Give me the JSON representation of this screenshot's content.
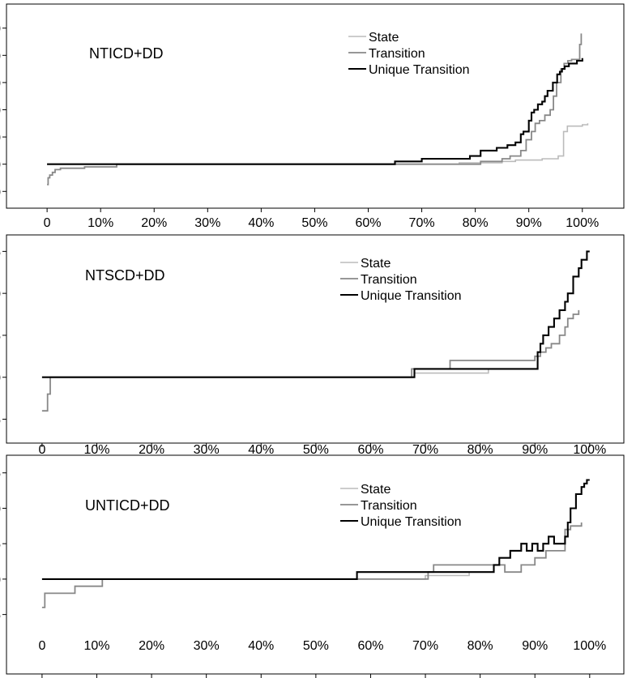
{
  "chart_data": [
    {
      "type": "line",
      "title": "NTICD+DD",
      "ylim": [
        -12,
        52
      ],
      "yticks": [
        -10,
        0,
        10,
        20,
        30,
        40,
        50
      ],
      "xticks": [
        "0",
        "10%",
        "20%",
        "30%",
        "40%",
        "50%",
        "60%",
        "70%",
        "80%",
        "90%",
        "100%"
      ],
      "xlim": [
        -0.035,
        1.07
      ],
      "legend": "top-right",
      "series": [
        {
          "name": "State",
          "color": "#bbbbbb",
          "width": 1.6,
          "step_x": [
            0,
            0.77,
            0.85,
            0.875,
            0.925,
            0.955,
            0.965,
            0.972,
            1.0,
            1.01
          ],
          "step_y": [
            0,
            0.5,
            1,
            1.5,
            2,
            3,
            12,
            14,
            14.5,
            15
          ]
        },
        {
          "name": "Transition",
          "color": "#888888",
          "width": 1.8,
          "step_x": [
            0,
            0.002,
            0.005,
            0.01,
            0.015,
            0.025,
            0.07,
            0.13,
            0.81,
            0.85,
            0.865,
            0.885,
            0.895,
            0.905,
            0.912,
            0.92,
            0.93,
            0.94,
            0.946,
            0.952,
            0.96,
            0.966,
            0.973,
            0.98,
            0.995,
            0.998
          ],
          "step_y": [
            -7.5,
            -5,
            -4,
            -3,
            -2,
            -1.5,
            -1,
            0,
            1,
            2,
            3,
            5,
            9,
            12,
            15,
            16,
            18,
            20,
            25,
            30,
            35,
            37,
            38,
            38.5,
            44,
            48
          ]
        },
        {
          "name": "Unique Transition",
          "color": "#000000",
          "width": 2.1,
          "step_x": [
            0,
            0.65,
            0.7,
            0.79,
            0.81,
            0.84,
            0.86,
            0.875,
            0.885,
            0.89,
            0.9,
            0.905,
            0.91,
            0.917,
            0.925,
            0.93,
            0.935,
            0.945,
            0.953,
            0.958,
            0.962,
            0.967,
            0.975,
            0.99,
            1.0
          ],
          "step_y": [
            0,
            1,
            2,
            3,
            5,
            6,
            7,
            8,
            11,
            12,
            16,
            19,
            20,
            22,
            23,
            25,
            27,
            30,
            33,
            34,
            35,
            36,
            37,
            38,
            39
          ]
        }
      ]
    },
    {
      "type": "line",
      "title": "NTSCD+DD",
      "ylim": [
        -6.3,
        16
      ],
      "yticks": [
        -5,
        0,
        5,
        10,
        15
      ],
      "xticks": [
        "0",
        "10%",
        "20%",
        "30%",
        "40%",
        "50%",
        "60%",
        "70%",
        "80%",
        "90%",
        "100%"
      ],
      "xlim": [
        -0.025,
        1.055
      ],
      "legend": "top-right",
      "series": [
        {
          "name": "State",
          "color": "#bbbbbb",
          "width": 1.6,
          "step_x": [
            0,
            0.68,
            0.815
          ],
          "step_y": [
            0,
            0.5,
            1
          ]
        },
        {
          "name": "Transition",
          "color": "#888888",
          "width": 1.8,
          "step_x": [
            0,
            0.01,
            0.015,
            0.675,
            0.745,
            0.9,
            0.91,
            0.92,
            0.93,
            0.945,
            0.955,
            0.96,
            0.97,
            0.98
          ],
          "step_y": [
            -4,
            -2,
            0,
            1,
            2,
            2.5,
            3,
            3.5,
            4,
            5,
            6,
            7,
            7.5,
            8
          ]
        },
        {
          "name": "Unique Transition",
          "color": "#000000",
          "width": 2.1,
          "step_x": [
            0,
            0.68,
            0.905,
            0.91,
            0.915,
            0.925,
            0.935,
            0.945,
            0.955,
            0.96,
            0.97,
            0.98,
            0.985,
            0.995,
            1.0
          ],
          "step_y": [
            0,
            1,
            3,
            4,
            5,
            6,
            7,
            8,
            9,
            10,
            12,
            13,
            14,
            15,
            15
          ]
        }
      ]
    },
    {
      "type": "line",
      "title": "UNTICD+DD",
      "ylim": [
        -6.3,
        16
      ],
      "yticks": [
        -5,
        0,
        5,
        10,
        15
      ],
      "xticks": [
        "0",
        "10%",
        "20%",
        "30%",
        "40%",
        "50%",
        "60%",
        "70%",
        "80%",
        "90%",
        "100%"
      ],
      "xlim": [
        -0.025,
        1.055
      ],
      "legend": "top-right",
      "series": [
        {
          "name": "State",
          "color": "#bbbbbb",
          "width": 1.6,
          "step_x": [
            0,
            0.7,
            0.78
          ],
          "step_y": [
            0,
            0.5,
            1
          ]
        },
        {
          "name": "Transition",
          "color": "#888888",
          "width": 1.8,
          "step_x": [
            0,
            0.005,
            0.06,
            0.11,
            0.705,
            0.715,
            0.845,
            0.875,
            0.9,
            0.92,
            0.955,
            0.965,
            0.985
          ],
          "step_y": [
            -4,
            -2,
            -1,
            0,
            1,
            2,
            1,
            2,
            3,
            4,
            7,
            7.5,
            8
          ]
        },
        {
          "name": "Unique Transition",
          "color": "#000000",
          "width": 2.1,
          "step_x": [
            0,
            0.575,
            0.825,
            0.835,
            0.855,
            0.875,
            0.885,
            0.895,
            0.905,
            0.915,
            0.925,
            0.935,
            0.955,
            0.96,
            0.965,
            0.975,
            0.985,
            0.99,
            0.995,
            1.0
          ],
          "step_y": [
            0,
            1,
            2,
            3,
            4,
            5,
            4,
            5,
            4,
            5,
            6,
            5,
            6,
            8,
            10,
            12,
            13,
            13.5,
            14,
            14
          ]
        }
      ]
    }
  ]
}
